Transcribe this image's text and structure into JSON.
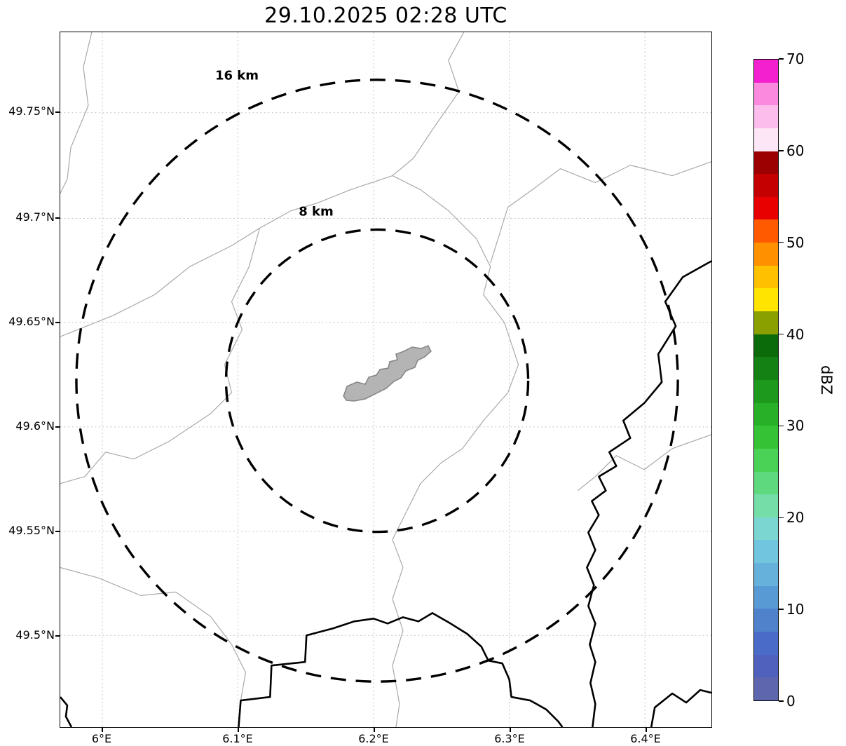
{
  "title": "29.10.2025 02:28 UTC",
  "map": {
    "x_axis": {
      "ticks": [
        "6°E",
        "6.1°E",
        "6.2°E",
        "6.3°E",
        "6.4°E"
      ]
    },
    "y_axis": {
      "ticks": [
        "49.75°N",
        "49.7°N",
        "49.65°N",
        "49.6°N",
        "49.55°N",
        "49.5°N"
      ]
    },
    "range_rings": [
      {
        "label": "16 km",
        "radius_km": 16
      },
      {
        "label": "8 km",
        "radius_km": 8
      }
    ],
    "features": {
      "airport_shape": "airport-area-outline",
      "thin_lines": "administrative-boundaries",
      "thick_lines": "rivers-country-borders"
    }
  },
  "colorbar": {
    "label": "dBZ",
    "min": 0,
    "max": 70,
    "ticks": [
      "0",
      "10",
      "20",
      "30",
      "40",
      "50",
      "60",
      "70"
    ],
    "colors": [
      "#5e66ad",
      "#4f60bd",
      "#4a6cc8",
      "#4f82cb",
      "#589bd4",
      "#65b1dc",
      "#72c5de",
      "#7bd5d1",
      "#74dda8",
      "#5ed97e",
      "#49d256",
      "#35c335",
      "#28b028",
      "#1d9a1d",
      "#138113",
      "#0b6b0b",
      "#8aa000",
      "#ffe400",
      "#ffc000",
      "#ff9000",
      "#ff5a00",
      "#e80000",
      "#c40000",
      "#9c0000",
      "#fde7f7",
      "#fcbcec",
      "#fb8ade",
      "#f320cf"
    ]
  },
  "chart_data": {
    "type": "map",
    "title": "29.10.2025 02:28 UTC",
    "description": "Weather radar display around 6.2°E / 49.62°N with 8 km and 16 km range rings; no reflectivity echoes visible on the map",
    "x_ticks_deg_east": [
      6.0,
      6.1,
      6.2,
      6.3,
      6.4
    ],
    "y_ticks_deg_north": [
      49.5,
      49.55,
      49.6,
      49.65,
      49.7,
      49.75
    ],
    "range_rings_km": [
      8,
      16
    ],
    "ring_center": {
      "lon_deg_east": 6.2,
      "lat_deg_north": 49.62
    },
    "grid": "dashed lat/lon graticule",
    "legend_position": "right colorbar",
    "colorbar": {
      "label": "dBZ",
      "min": 0,
      "max": 70,
      "tick_values": [
        0,
        10,
        20,
        30,
        40,
        50,
        60,
        70
      ],
      "segment_step_dbz": 2.5
    }
  }
}
